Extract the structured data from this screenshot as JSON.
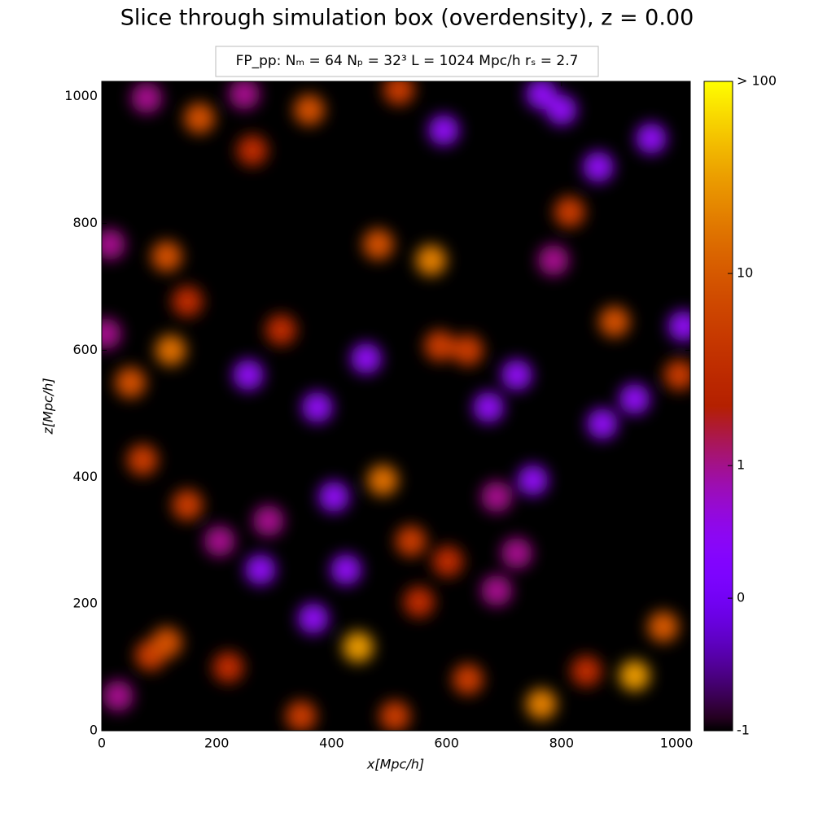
{
  "chart_data": {
    "type": "heatmap",
    "title": "Slice through simulation box (overdensity), z = 0.00",
    "subtitle": "FP_pp:  Nₘ = 64   Nₚ = 32³   L = 1024 Mpc/h   rₛ = 2.7",
    "x_label": "x[Mpc/h]",
    "y_label": "z[Mpc/h]",
    "xlim": [
      0,
      1024
    ],
    "ylim": [
      0,
      1024
    ],
    "xticks": [
      0,
      200,
      400,
      600,
      800,
      1000
    ],
    "yticks": [
      0,
      200,
      400,
      600,
      800,
      1000
    ],
    "colormap": "gnuplot",
    "color_scale": "symlog",
    "clim": [
      -1,
      100
    ],
    "cticks": [
      -1,
      0,
      1,
      10,
      {
        "value": 100,
        "label": "> 100"
      }
    ],
    "blobs": [
      {
        "x": 361,
        "z": 979,
        "value": 8
      },
      {
        "x": 170,
        "z": 966,
        "value": 8
      },
      {
        "x": 517,
        "z": 1011,
        "value": 5
      },
      {
        "x": 78,
        "z": 998,
        "value": 1
      },
      {
        "x": 248,
        "z": 1004,
        "value": 1
      },
      {
        "x": 765,
        "z": 1004,
        "value": 0.5
      },
      {
        "x": 800,
        "z": 979,
        "value": 0.5
      },
      {
        "x": 595,
        "z": 947,
        "value": 0.5
      },
      {
        "x": 262,
        "z": 915,
        "value": 3
      },
      {
        "x": 956,
        "z": 934,
        "value": 0.5
      },
      {
        "x": 864,
        "z": 889,
        "value": 0.5
      },
      {
        "x": 481,
        "z": 767,
        "value": 8
      },
      {
        "x": 573,
        "z": 742,
        "value": 20
      },
      {
        "x": 113,
        "z": 748,
        "value": 8
      },
      {
        "x": 14,
        "z": 767,
        "value": 1
      },
      {
        "x": 814,
        "z": 818,
        "value": 5
      },
      {
        "x": 786,
        "z": 742,
        "value": 1
      },
      {
        "x": 149,
        "z": 677,
        "value": 3
      },
      {
        "x": 120,
        "z": 600,
        "value": 15
      },
      {
        "x": 50,
        "z": 549,
        "value": 8
      },
      {
        "x": 312,
        "z": 632,
        "value": 3
      },
      {
        "x": 375,
        "z": 510,
        "value": 0.5
      },
      {
        "x": 588,
        "z": 607,
        "value": 5
      },
      {
        "x": 637,
        "z": 600,
        "value": 5
      },
      {
        "x": 892,
        "z": 645,
        "value": 8
      },
      {
        "x": 1005,
        "z": 561,
        "value": 5
      },
      {
        "x": 71,
        "z": 427,
        "value": 5
      },
      {
        "x": 149,
        "z": 356,
        "value": 5
      },
      {
        "x": 489,
        "z": 395,
        "value": 15
      },
      {
        "x": 538,
        "z": 299,
        "value": 5
      },
      {
        "x": 602,
        "z": 267,
        "value": 3
      },
      {
        "x": 722,
        "z": 280,
        "value": 1
      },
      {
        "x": 113,
        "z": 139,
        "value": 8
      },
      {
        "x": 85,
        "z": 119,
        "value": 5
      },
      {
        "x": 446,
        "z": 132,
        "value": 30
      },
      {
        "x": 220,
        "z": 100,
        "value": 3
      },
      {
        "x": 347,
        "z": 23,
        "value": 5
      },
      {
        "x": 510,
        "z": 23,
        "value": 5
      },
      {
        "x": 765,
        "z": 42,
        "value": 20
      },
      {
        "x": 927,
        "z": 87,
        "value": 30
      },
      {
        "x": 977,
        "z": 164,
        "value": 10
      },
      {
        "x": 843,
        "z": 94,
        "value": 3
      },
      {
        "x": 637,
        "z": 81,
        "value": 5
      },
      {
        "x": 552,
        "z": 203,
        "value": 3
      },
      {
        "x": 404,
        "z": 369,
        "value": 0.5
      },
      {
        "x": 290,
        "z": 331,
        "value": 1
      },
      {
        "x": 205,
        "z": 299,
        "value": 1
      },
      {
        "x": 687,
        "z": 369,
        "value": 1
      },
      {
        "x": 750,
        "z": 395,
        "value": 0.5
      },
      {
        "x": 276,
        "z": 254,
        "value": 0.5
      },
      {
        "x": 368,
        "z": 177,
        "value": 0.5
      },
      {
        "x": 673,
        "z": 510,
        "value": 0.5
      },
      {
        "x": 722,
        "z": 561,
        "value": 0.5
      },
      {
        "x": 255,
        "z": 561,
        "value": 0.5
      },
      {
        "x": 1012,
        "z": 638,
        "value": 0.5
      },
      {
        "x": 927,
        "z": 523,
        "value": 0.5
      },
      {
        "x": 871,
        "z": 484,
        "value": 0.5
      },
      {
        "x": 28,
        "z": 55,
        "value": 1
      },
      {
        "x": 7,
        "z": 626,
        "value": 1
      },
      {
        "x": 687,
        "z": 221,
        "value": 1
      },
      {
        "x": 460,
        "z": 587,
        "value": 0.5
      },
      {
        "x": 425,
        "z": 254,
        "value": 0.5
      }
    ]
  }
}
